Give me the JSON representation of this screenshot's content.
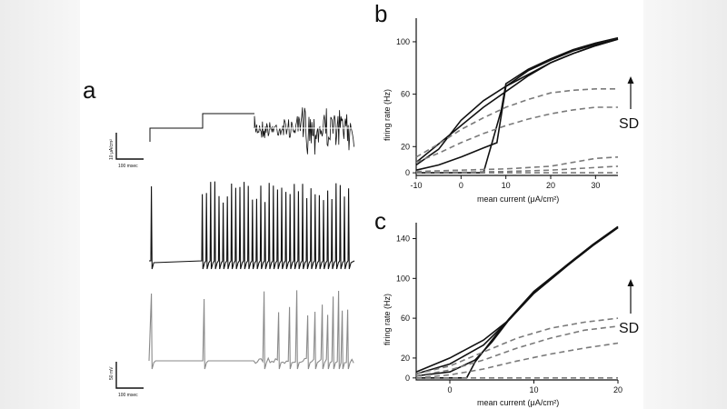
{
  "panels": {
    "a": "a",
    "b": "b",
    "c": "c"
  },
  "panel_a": {
    "current_scale_label": "10 μA/cm²",
    "current_time_label": "100 msec",
    "voltage_scale_label": "50 mV",
    "voltage_time_label": "100 msec",
    "trace_colors": {
      "current": "#111111",
      "black_voltage": "#111111",
      "gray_voltage": "#8a8a8a"
    }
  },
  "chart_data": [
    {
      "id": "b",
      "type": "line",
      "xlabel": "mean current (μA/cm²)",
      "ylabel": "firing rate (Hz)",
      "xlim": [
        -10,
        35
      ],
      "ylim": [
        -2,
        118
      ],
      "xticks": [
        -10,
        0,
        10,
        20,
        30
      ],
      "yticks": [
        0,
        20,
        60,
        100
      ],
      "annotation": "SD",
      "series": [
        {
          "name": "solid-1",
          "style": "solid",
          "x": [
            -10,
            -5,
            0,
            5,
            10,
            15,
            20,
            25,
            30,
            35
          ],
          "y": [
            8,
            22,
            36,
            50,
            62,
            74,
            84,
            91,
            97,
            102
          ]
        },
        {
          "name": "solid-2",
          "style": "solid",
          "x": [
            -10,
            -5,
            0,
            5,
            10,
            15,
            20,
            25,
            30,
            35
          ],
          "y": [
            6,
            18,
            40,
            55,
            66,
            75,
            84,
            91,
            97,
            102
          ]
        },
        {
          "name": "solid-3",
          "style": "solid",
          "x": [
            -10,
            -5,
            0,
            5,
            8,
            10,
            15,
            20,
            25,
            30,
            35
          ],
          "y": [
            2,
            6,
            12,
            19,
            23,
            66,
            78,
            86,
            93,
            98,
            102
          ]
        },
        {
          "name": "solid-4",
          "style": "solid",
          "x": [
            -10,
            0,
            5,
            6,
            7,
            8,
            9,
            10,
            15,
            20,
            25,
            30,
            35
          ],
          "y": [
            0,
            0,
            0,
            12,
            24,
            36,
            48,
            68,
            79,
            87,
            94,
            99,
            103
          ]
        },
        {
          "name": "dashed-1",
          "style": "dashed",
          "x": [
            -10,
            -5,
            0,
            5,
            10,
            15,
            20,
            25,
            30,
            35
          ],
          "y": [
            12,
            22,
            33,
            42,
            50,
            56,
            61,
            63,
            64,
            64
          ]
        },
        {
          "name": "dashed-2",
          "style": "dashed",
          "x": [
            -10,
            -5,
            0,
            5,
            10,
            15,
            20,
            25,
            30,
            35
          ],
          "y": [
            8,
            15,
            23,
            30,
            36,
            41,
            45,
            48,
            50,
            50
          ]
        },
        {
          "name": "dashed-3",
          "style": "dashed",
          "x": [
            -10,
            0,
            10,
            20,
            25,
            30,
            35
          ],
          "y": [
            1,
            2,
            3,
            5,
            8,
            11,
            12
          ]
        },
        {
          "name": "dashed-4",
          "style": "dashed",
          "x": [
            -10,
            0,
            10,
            20,
            25,
            30,
            35
          ],
          "y": [
            0,
            0.5,
            1,
            2,
            3,
            4,
            5
          ]
        },
        {
          "name": "dashed-5",
          "style": "dashed",
          "x": [
            -10,
            35
          ],
          "y": [
            0,
            0
          ]
        }
      ]
    },
    {
      "id": "c",
      "type": "line",
      "xlabel": "mean current (μA/cm²)",
      "ylabel": "firing rate (Hz)",
      "xlim": [
        -4,
        20
      ],
      "ylim": [
        -2,
        156
      ],
      "xticks": [
        0,
        10,
        20
      ],
      "yticks": [
        0,
        20,
        60,
        100,
        140
      ],
      "annotation": "SD",
      "series": [
        {
          "name": "solid-1",
          "style": "solid",
          "x": [
            -4,
            0,
            4,
            7,
            10,
            14,
            17,
            20
          ],
          "y": [
            6,
            20,
            38,
            58,
            85,
            113,
            133,
            151
          ]
        },
        {
          "name": "solid-2",
          "style": "solid",
          "x": [
            -4,
            0,
            4,
            7,
            10,
            14,
            17,
            20
          ],
          "y": [
            4,
            14,
            33,
            58,
            85,
            113,
            133,
            151
          ]
        },
        {
          "name": "solid-3",
          "style": "solid",
          "x": [
            -4,
            0,
            3,
            5,
            7,
            10,
            14,
            17,
            20
          ],
          "y": [
            2,
            6,
            18,
            36,
            58,
            86,
            114,
            134,
            152
          ]
        },
        {
          "name": "solid-4",
          "style": "solid",
          "x": [
            -4,
            2,
            3,
            5,
            7,
            10,
            14,
            17,
            20
          ],
          "y": [
            0,
            0,
            16,
            38,
            59,
            87,
            114,
            134,
            152
          ]
        },
        {
          "name": "dashed-1",
          "style": "dashed",
          "x": [
            -4,
            0,
            4,
            8,
            12,
            16,
            20
          ],
          "y": [
            4,
            12,
            26,
            40,
            50,
            56,
            60
          ]
        },
        {
          "name": "dashed-2",
          "style": "dashed",
          "x": [
            -4,
            0,
            4,
            8,
            12,
            16,
            20
          ],
          "y": [
            2,
            8,
            18,
            30,
            40,
            48,
            52
          ]
        },
        {
          "name": "dashed-3",
          "style": "dashed",
          "x": [
            -4,
            0,
            4,
            8,
            12,
            16,
            20
          ],
          "y": [
            0,
            3,
            9,
            17,
            24,
            30,
            35
          ]
        },
        {
          "name": "dashed-4",
          "style": "dashed",
          "x": [
            -4,
            20
          ],
          "y": [
            0,
            0
          ]
        }
      ]
    }
  ]
}
